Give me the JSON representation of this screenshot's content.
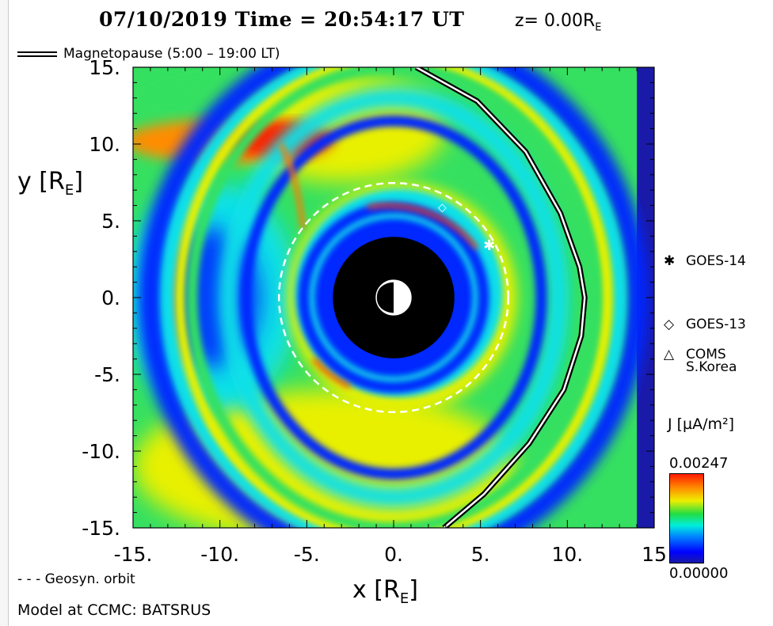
{
  "title": "07/10/2019 Time = 20:54:17 UT",
  "z_label": {
    "prefix": "z= 0.00R",
    "subscript": "E"
  },
  "magnetopause_legend": "Magnetopause (5:00 – 19:00 LT)",
  "geosyn_legend": "- - - Geosyn. orbit",
  "model_note": "Model at CCMC: BATSRUS",
  "colorbar": {
    "title": "J [µA/m²]",
    "max_label": "0.00247",
    "min_label": "0.00000"
  },
  "satellites": [
    {
      "symbol": "✱",
      "label": "GOES-14"
    },
    {
      "symbol": "◇",
      "label": "GOES-13"
    },
    {
      "symbol": "△",
      "label": "COMS S.Korea"
    }
  ],
  "colors": {
    "red": "#ff2000",
    "yellow": "#e8f000",
    "green": "#35e060",
    "cyan": "#10e0e8",
    "blue": "#0028ff",
    "navy": "#1a1aa8",
    "black": "#000000"
  },
  "chart_data": {
    "type": "heatmap",
    "title": "07/10/2019 Time = 20:54:17 UT",
    "xlabel": "x [RE]",
    "ylabel": "y [RE]",
    "xlim": [
      -15,
      15
    ],
    "ylim": [
      -15,
      15
    ],
    "x_ticks": [
      "-15.",
      "-10.",
      "-5.",
      "0.",
      "5.",
      "10.",
      "15"
    ],
    "y_ticks": [
      "15.",
      "10.",
      "5.",
      "0.",
      "-5.",
      "-10.",
      "-15."
    ],
    "x_tick_values": [
      -15,
      -10,
      -5,
      0,
      5,
      10,
      15
    ],
    "y_tick_values": [
      15,
      10,
      5,
      0,
      -5,
      -10,
      -15
    ],
    "colorbar_range": [
      0.0,
      0.00247
    ],
    "geosynchronous_orbit_radius": 6.6,
    "magnetopause": {
      "x": [
        1.3,
        4.8,
        7.6,
        9.6,
        10.7,
        11.0,
        10.8,
        9.8,
        7.8,
        5.2,
        2.9
      ],
      "y": [
        15.0,
        12.8,
        9.5,
        5.5,
        2.0,
        0.0,
        -2.5,
        -6.0,
        -9.5,
        -12.8,
        -15.0
      ]
    },
    "satellite_positions": [
      {
        "name": "GOES-14",
        "x": 5.5,
        "y": 3.4
      },
      {
        "name": "GOES-13",
        "x": 2.8,
        "y": 5.9
      }
    ]
  }
}
